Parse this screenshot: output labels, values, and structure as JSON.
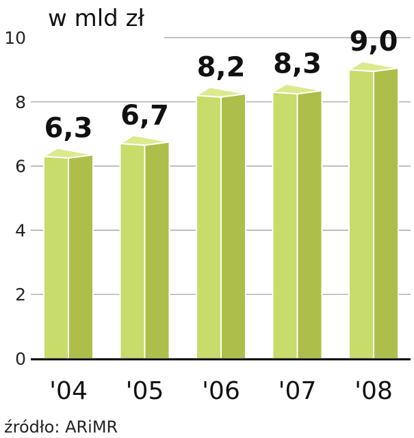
{
  "chart_data": {
    "type": "bar",
    "unit_label": "w mld zł",
    "categories": [
      "'04",
      "'05",
      "'06",
      "'07",
      "'08"
    ],
    "values": [
      6.3,
      6.7,
      8.2,
      8.3,
      9.0
    ],
    "value_labels": [
      "6,3",
      "6,7",
      "8,2",
      "8,3",
      "9,0"
    ],
    "yticks": [
      "0",
      "2",
      "4",
      "6",
      "8",
      "10"
    ],
    "ylim": [
      0,
      10
    ],
    "grid": true,
    "source": "źródło: ARiMR",
    "colors": {
      "bar_front": "#c7dc6a",
      "bar_side": "#aebe4a",
      "bar_top": "#dce98f",
      "grid": "#999999",
      "axis": "#000000"
    }
  }
}
